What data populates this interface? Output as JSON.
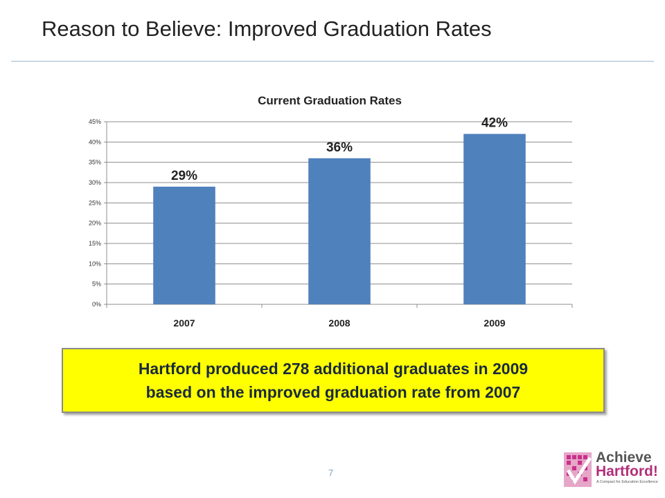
{
  "slide": {
    "title": "Reason to Believe:  Improved Graduation Rates",
    "page_number": "7"
  },
  "callout": {
    "line1": "Hartford produced 278 additional graduates in 2009",
    "line2": "based on the improved graduation rate from 2007"
  },
  "logo": {
    "line1": "Achieve",
    "line2": "Hartford!",
    "tagline": "A Compact for Education Excellence"
  },
  "chart_data": {
    "type": "bar",
    "title": "Current Graduation Rates",
    "categories": [
      "2007",
      "2008",
      "2009"
    ],
    "values": [
      29,
      36,
      42
    ],
    "data_labels": [
      "29%",
      "36%",
      "42%"
    ],
    "ylim": [
      0,
      45
    ],
    "yticks": [
      0,
      5,
      10,
      15,
      20,
      25,
      30,
      35,
      40,
      45
    ],
    "ytick_labels": [
      "0%",
      "5%",
      "10%",
      "15%",
      "20%",
      "25%",
      "30%",
      "35%",
      "40%",
      "45%"
    ],
    "grid": true,
    "legend": "none",
    "bar_color": "#4f81bd"
  }
}
